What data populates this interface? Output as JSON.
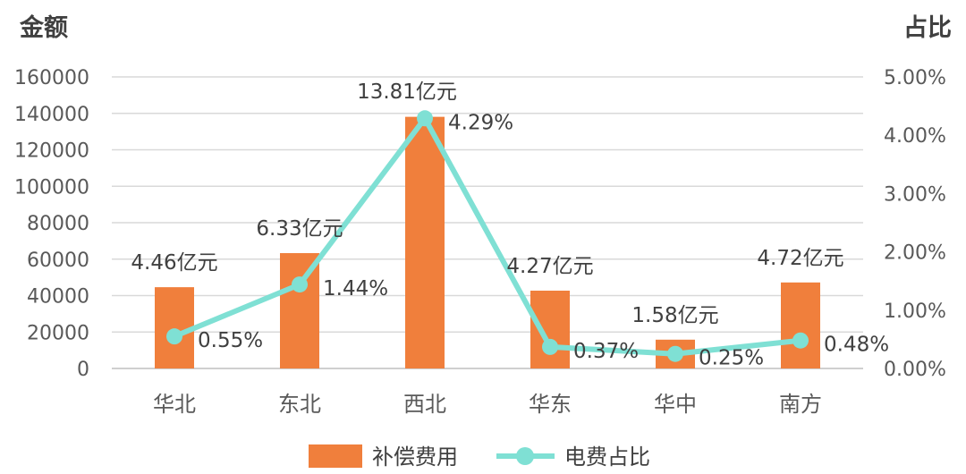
{
  "chart_data": {
    "type": "bar",
    "categories": [
      "华北",
      "东北",
      "西北",
      "华东",
      "华中",
      "南方"
    ],
    "y_left_title": "金额",
    "y_right_title": "占比",
    "y_left_ticks": [
      "0",
      "20000",
      "40000",
      "60000",
      "80000",
      "100000",
      "120000",
      "140000",
      "160000"
    ],
    "y_right_ticks": [
      "0.00%",
      "1.00%",
      "2.00%",
      "3.00%",
      "4.00%",
      "5.00%"
    ],
    "ylim_left": [
      0,
      160000
    ],
    "ylim_right": [
      0,
      5
    ],
    "grid": true,
    "legend_position": "bottom",
    "series": [
      {
        "name": "补偿费用",
        "type": "bar",
        "axis": "left",
        "color": "#F07F3C",
        "values": [
          44600,
          63300,
          138100,
          42700,
          15800,
          47200
        ],
        "labels": [
          "4.46亿元",
          "6.33亿元",
          "13.81亿元",
          "4.27亿元",
          "1.58亿元",
          "4.72亿元"
        ]
      },
      {
        "name": "电费占比",
        "type": "line",
        "axis": "right",
        "color": "#7FE0D4",
        "values": [
          0.55,
          1.44,
          4.29,
          0.37,
          0.25,
          0.48
        ],
        "labels": [
          "0.55%",
          "1.44%",
          "4.29%",
          "0.37%",
          "0.25%",
          "0.48%"
        ]
      }
    ]
  }
}
